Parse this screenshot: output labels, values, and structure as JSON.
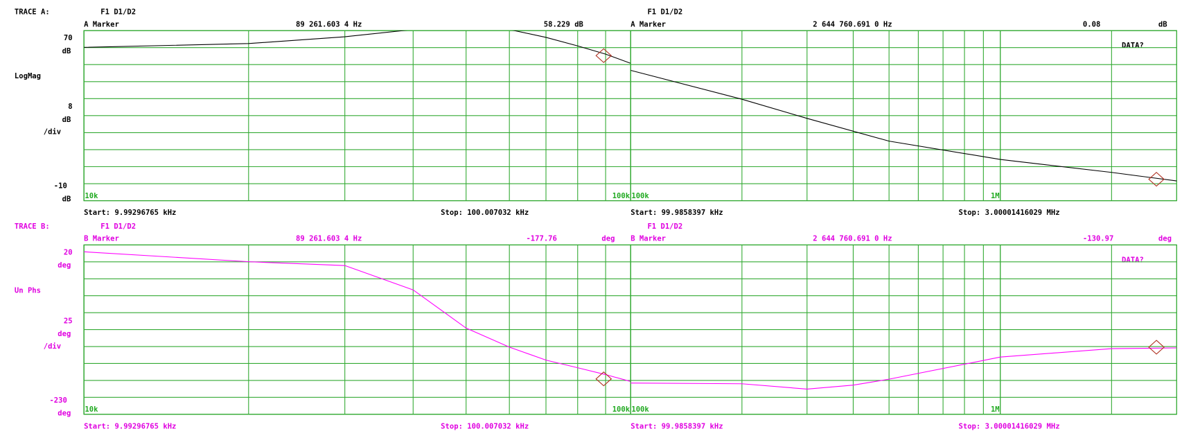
{
  "traces": [
    {
      "label": "TRACE A:",
      "color": "#000000",
      "text_color": "#000000",
      "format": "LogMag",
      "unit": "dB",
      "div_suffix": "/div",
      "ylim": [
        -10,
        70
      ],
      "per_div": 8,
      "channels": [
        {
          "title": "F1 D1/D2",
          "marker_label": "A Marker",
          "marker_freq_label": "89 261.603 4 Hz",
          "marker_freq": 89261.6034,
          "marker_value": 58.229,
          "marker_value_label": "58.229 dB",
          "xlim": [
            9992.96765,
            100007.032
          ],
          "xticks": [
            {
              "value": 10000,
              "label": "10k"
            },
            {
              "value": 100000,
              "label": "100k"
            }
          ],
          "xgrid": [
            20000,
            30000,
            40000,
            50000,
            60000,
            70000,
            80000,
            90000
          ],
          "start": "Start: 9.99296765 kHz",
          "stop": "Stop: 100.007032 kHz",
          "trace": {
            "x": [
              10000,
              20000,
              30000,
              40000,
              50000,
              60000,
              70000,
              80000,
              90000,
              100000
            ],
            "values": [
              62.1,
              63.9,
              67.1,
              70.5,
              71,
              70.5,
              66.8,
              62.8,
              58.9,
              54.6
            ]
          }
        },
        {
          "title": "F1 D1/D2",
          "marker_label": "A Marker",
          "marker_freq_label": "2 644 760.691 0 Hz",
          "marker_freq": 2644760.691,
          "marker_value": 0.08,
          "xlim": [
            99985.8397,
            3000014.16029
          ],
          "xticks": [
            {
              "value": 100000,
              "label": "100k"
            },
            {
              "value": 1000000,
              "label": "1M"
            }
          ],
          "xgrid": [
            200000,
            300000,
            400000,
            500000,
            600000,
            700000,
            800000,
            900000,
            1000000,
            2000000
          ],
          "start": "Start: 99.9858397 kHz",
          "stop": "Stop: 3.00001416029 MHz",
          "prompt": "DATA?",
          "trace": {
            "x": [
              100000,
              200000,
              300000,
              500000,
              1000000,
              2000000,
              3000000
            ],
            "values": [
              51.3,
              37.7,
              28.7,
              18.0,
              9.4,
              3.3,
              -0.7
            ]
          }
        }
      ]
    },
    {
      "label": "TRACE B:",
      "color": "#ff00ff",
      "text_color": "#e000e0",
      "format": "Un Phs",
      "unit": "deg",
      "div_suffix": "/div",
      "ylim": [
        -230,
        20
      ],
      "per_div": 25,
      "channels": [
        {
          "title": "F1 D1/D2",
          "marker_label": "B Marker",
          "marker_freq_label": "89 261.603 4 Hz",
          "marker_freq": 89261.6034,
          "marker_value": -177.76,
          "xlim": [
            9992.96765,
            100007.032
          ],
          "xticks": [
            {
              "value": 10000,
              "label": "10k"
            },
            {
              "value": 100000,
              "label": "100k"
            }
          ],
          "xgrid": [
            20000,
            30000,
            40000,
            50000,
            60000,
            70000,
            80000,
            90000
          ],
          "start": "Start: 9.99296765 kHz",
          "stop": "Stop: 100.007032 kHz",
          "trace": {
            "x": [
              10000,
              20000,
              30000,
              40000,
              50000,
              60000,
              70000,
              80000,
              90000,
              100000
            ],
            "values": [
              9.9,
              -4.8,
              -10.4,
              -46.4,
              -102.7,
              -130.9,
              -150,
              -161.3,
              -171.4,
              -181.6
            ]
          }
        },
        {
          "title": "F1 D1/D2",
          "marker_label": "B Marker",
          "marker_freq_label": "2 644 760.691 0 Hz",
          "marker_freq": 2644760.691,
          "marker_value": -130.97,
          "xlim": [
            99985.8397,
            3000014.16029
          ],
          "xticks": [
            {
              "value": 100000,
              "label": "100k"
            },
            {
              "value": 1000000,
              "label": "1M"
            }
          ],
          "xgrid": [
            200000,
            300000,
            400000,
            500000,
            600000,
            700000,
            800000,
            900000,
            1000000,
            2000000
          ],
          "start": "Start: 99.9858397 kHz",
          "stop": "Stop: 3.00001416029 MHz",
          "prompt": "DATA?",
          "trace": {
            "x": [
              100000,
              200000,
              300000,
              400000,
              500000,
              1000000,
              2000000,
              3000000
            ],
            "values": [
              -183.8,
              -185,
              -192.8,
              -187,
              -178.2,
              -145.5,
              -133.2,
              -132
            ]
          }
        }
      ]
    }
  ]
}
